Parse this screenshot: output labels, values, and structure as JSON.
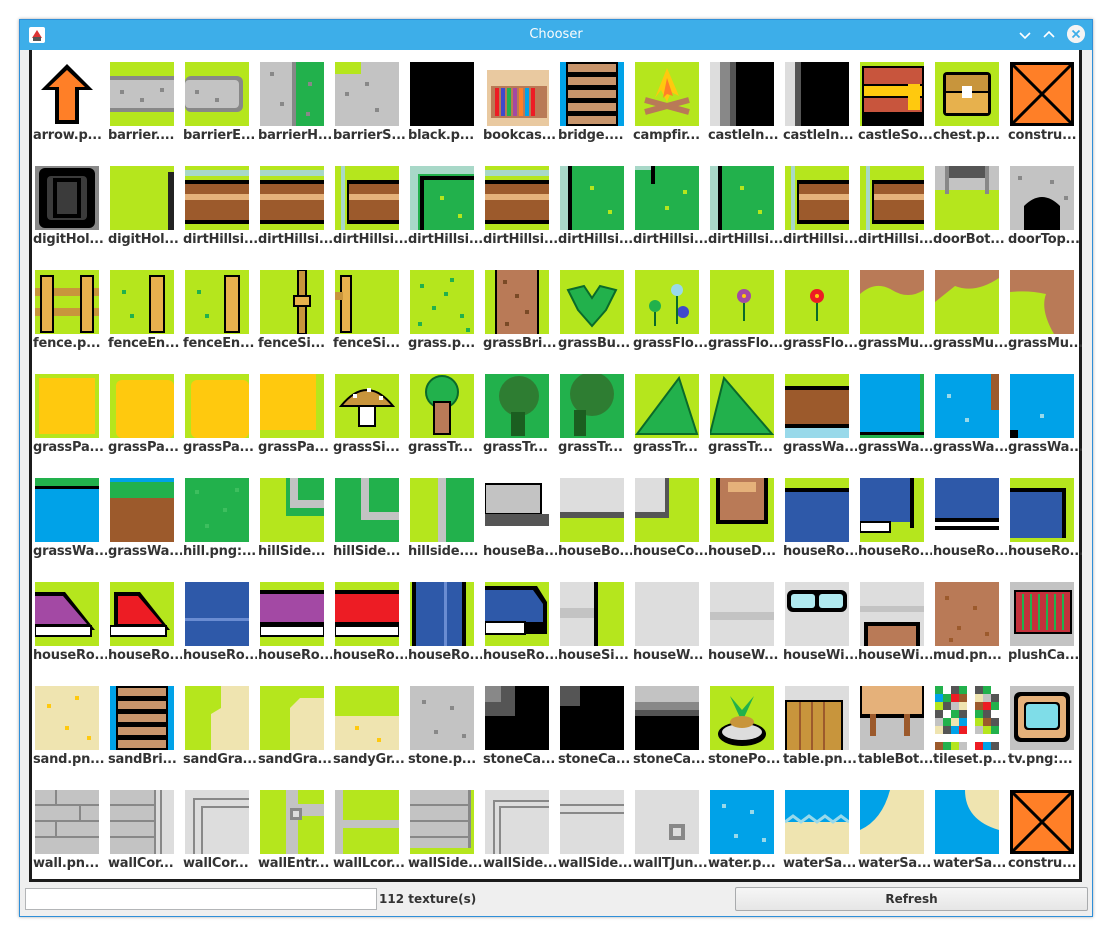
{
  "window": {
    "title": "Chooser"
  },
  "colors": {
    "titlebar": "#3daee9",
    "grass": "#b5e61d",
    "dark_grass": "#22b14c",
    "water": "#00a2e8",
    "sand": "#efe4b0"
  },
  "tiles": [
    {
      "label": "arrow.p...",
      "kind": "arrow"
    },
    {
      "label": "barrier....",
      "kind": "barrier"
    },
    {
      "label": "barrierE...",
      "kind": "barrierE"
    },
    {
      "label": "barrierH...",
      "kind": "barrierH"
    },
    {
      "label": "barrierS...",
      "kind": "barrierS"
    },
    {
      "label": "black.p...",
      "kind": "black"
    },
    {
      "label": "bookcas...",
      "kind": "bookcase"
    },
    {
      "label": "bridge....",
      "kind": "bridge"
    },
    {
      "label": "campfir...",
      "kind": "campfire"
    },
    {
      "label": "castleIn...",
      "kind": "castleIn1"
    },
    {
      "label": "castleIn...",
      "kind": "castleIn2"
    },
    {
      "label": "castleSo...",
      "kind": "castleSo"
    },
    {
      "label": "chest.p...",
      "kind": "chest"
    },
    {
      "label": "constru...",
      "kind": "construction"
    },
    {
      "label": "digitHol...",
      "kind": "digitHole"
    },
    {
      "label": "digitHol...",
      "kind": "digitHole2"
    },
    {
      "label": "dirtHillsi...",
      "kind": "dirt"
    },
    {
      "label": "dirtHillsi...",
      "kind": "dirt"
    },
    {
      "label": "dirtHillsi...",
      "kind": "dirtL"
    },
    {
      "label": "dirtHillsi...",
      "kind": "dirtCorner"
    },
    {
      "label": "dirtHillsi...",
      "kind": "dirt"
    },
    {
      "label": "dirtHillsi...",
      "kind": "dirtEdgeL"
    },
    {
      "label": "dirtHillsi...",
      "kind": "dirtCornerR"
    },
    {
      "label": "dirtHillsi...",
      "kind": "dirtEdgeL"
    },
    {
      "label": "dirtHillsi...",
      "kind": "dirtL"
    },
    {
      "label": "dirtHillsi...",
      "kind": "dirtL"
    },
    {
      "label": "doorBot...",
      "kind": "doorBot"
    },
    {
      "label": "doorTop...",
      "kind": "doorTop"
    },
    {
      "label": "fence.p...",
      "kind": "fence"
    },
    {
      "label": "fenceEn...",
      "kind": "fenceEnd"
    },
    {
      "label": "fenceEn...",
      "kind": "fenceEnd"
    },
    {
      "label": "fenceSi...",
      "kind": "fenceSide"
    },
    {
      "label": "fenceSi...",
      "kind": "fenceSide2"
    },
    {
      "label": "grass.p...",
      "kind": "grass"
    },
    {
      "label": "grassBri...",
      "kind": "grassBridge"
    },
    {
      "label": "grassBu...",
      "kind": "grassBush"
    },
    {
      "label": "grassFlo...",
      "kind": "flowersBlue"
    },
    {
      "label": "grassFlo...",
      "kind": "flowerPurple"
    },
    {
      "label": "grassFlo...",
      "kind": "flowerRed"
    },
    {
      "label": "grassMu...",
      "kind": "grassMud"
    },
    {
      "label": "grassMu...",
      "kind": "grassMud2"
    },
    {
      "label": "grassMu...",
      "kind": "grassMud3"
    },
    {
      "label": "grassPa...",
      "kind": "grassPath"
    },
    {
      "label": "grassPa...",
      "kind": "grassPath2"
    },
    {
      "label": "grassPa...",
      "kind": "grassPath2"
    },
    {
      "label": "grassPa...",
      "kind": "grassPath3"
    },
    {
      "label": "grassSi...",
      "kind": "mushroom"
    },
    {
      "label": "grassTr...",
      "kind": "tree"
    },
    {
      "label": "grassTr...",
      "kind": "treeDark"
    },
    {
      "label": "grassTr...",
      "kind": "treeDark2"
    },
    {
      "label": "grassTr...",
      "kind": "treePine"
    },
    {
      "label": "grassTr...",
      "kind": "treePine2"
    },
    {
      "label": "grassWa...",
      "kind": "grassWater"
    },
    {
      "label": "grassWa...",
      "kind": "grassWater2"
    },
    {
      "label": "grassWa...",
      "kind": "grassWater3"
    },
    {
      "label": "grassWa...",
      "kind": "grassWater4"
    },
    {
      "label": "grassWa...",
      "kind": "grassWater5"
    },
    {
      "label": "grassWa...",
      "kind": "dirtPlatform"
    },
    {
      "label": "hill.png:...",
      "kind": "hill"
    },
    {
      "label": "hillSide...",
      "kind": "hillSide"
    },
    {
      "label": "hillSide...",
      "kind": "hillSide2"
    },
    {
      "label": "hillside....",
      "kind": "hillSide3"
    },
    {
      "label": "houseBa...",
      "kind": "houseBa"
    },
    {
      "label": "houseBo...",
      "kind": "houseBo"
    },
    {
      "label": "houseCo...",
      "kind": "houseCo"
    },
    {
      "label": "houseD...",
      "kind": "houseDoor"
    },
    {
      "label": "houseRo...",
      "kind": "roofBlue"
    },
    {
      "label": "houseRo...",
      "kind": "roofBlue2"
    },
    {
      "label": "houseRo...",
      "kind": "roofBlue3"
    },
    {
      "label": "houseRo...",
      "kind": "roofBlue4"
    },
    {
      "label": "houseRo...",
      "kind": "roofPurple"
    },
    {
      "label": "houseRo...",
      "kind": "roofRed"
    },
    {
      "label": "houseRo...",
      "kind": "roofBlueFlat"
    },
    {
      "label": "houseRo...",
      "kind": "roofPurpleFlat"
    },
    {
      "label": "houseRo...",
      "kind": "roofRedFlat"
    },
    {
      "label": "houseRo...",
      "kind": "roofBlueV"
    },
    {
      "label": "houseRo...",
      "kind": "roofBlueC"
    },
    {
      "label": "houseSi...",
      "kind": "houseSide"
    },
    {
      "label": "houseW...",
      "kind": "houseWall"
    },
    {
      "label": "houseW...",
      "kind": "houseWall2"
    },
    {
      "label": "houseWi...",
      "kind": "houseWindow"
    },
    {
      "label": "houseWi...",
      "kind": "houseWindow2"
    },
    {
      "label": "mud.pn...",
      "kind": "mud"
    },
    {
      "label": "plushCa...",
      "kind": "plush"
    },
    {
      "label": "sand.pn...",
      "kind": "sand"
    },
    {
      "label": "sandBri...",
      "kind": "sandBridge"
    },
    {
      "label": "sandGra...",
      "kind": "sandGrass"
    },
    {
      "label": "sandGra...",
      "kind": "sandGrass2"
    },
    {
      "label": "sandyGr...",
      "kind": "sandyGrass"
    },
    {
      "label": "stone.p...",
      "kind": "stone"
    },
    {
      "label": "stoneCa...",
      "kind": "stoneCave"
    },
    {
      "label": "stoneCa...",
      "kind": "stoneCave2"
    },
    {
      "label": "stoneCa...",
      "kind": "stoneCave3"
    },
    {
      "label": "stonePo...",
      "kind": "stonePot"
    },
    {
      "label": "table.pn...",
      "kind": "table"
    },
    {
      "label": "tableBot...",
      "kind": "tableBot"
    },
    {
      "label": "tileset.p...",
      "kind": "tileset"
    },
    {
      "label": "tv.png:...",
      "kind": "tv"
    },
    {
      "label": "wall.pn...",
      "kind": "wall"
    },
    {
      "label": "wallCor...",
      "kind": "wallCorner"
    },
    {
      "label": "wallCor...",
      "kind": "wallCorner2"
    },
    {
      "label": "wallEntr...",
      "kind": "wallEntrance"
    },
    {
      "label": "wallLcor...",
      "kind": "wallLcorner"
    },
    {
      "label": "wallSide...",
      "kind": "wallSide"
    },
    {
      "label": "wallSide...",
      "kind": "wallSide2"
    },
    {
      "label": "wallSide...",
      "kind": "wallSide3"
    },
    {
      "label": "wallTJun...",
      "kind": "wallTJunction"
    },
    {
      "label": "water.p...",
      "kind": "water"
    },
    {
      "label": "waterSa...",
      "kind": "waterSand"
    },
    {
      "label": "waterSa...",
      "kind": "waterSand2"
    },
    {
      "label": "waterSa...",
      "kind": "waterSand3"
    },
    {
      "label": "constru...",
      "kind": "construction"
    }
  ],
  "status": {
    "input_value": "",
    "count_text": "112 texture(s)"
  },
  "buttons": {
    "refresh_label": "Refresh"
  }
}
